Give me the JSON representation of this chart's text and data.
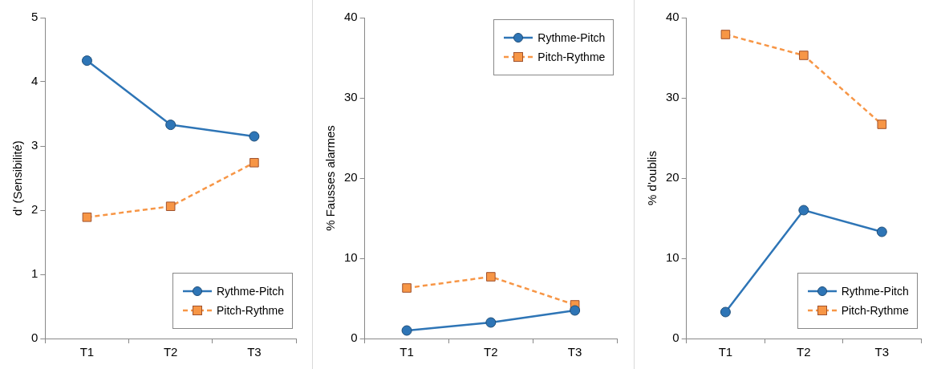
{
  "chart_data": [
    {
      "type": "line",
      "ylabel": "d' (Sensibilité)",
      "categories": [
        "T1",
        "T2",
        "T3"
      ],
      "ylim": [
        0,
        5
      ],
      "yticks": [
        0,
        1,
        2,
        3,
        4,
        5
      ],
      "grid": false,
      "legend": "bottom right",
      "series": [
        {
          "name": "Rythme-Pitch",
          "color": "#2e75b6",
          "values": [
            4.33,
            3.33,
            3.15
          ],
          "marker": "circle",
          "line_style": "solid"
        },
        {
          "name": "Pitch-Rythme",
          "color": "#f79646",
          "values": [
            1.89,
            2.06,
            2.74
          ],
          "marker": "square",
          "line_style": "dashed"
        }
      ]
    },
    {
      "type": "line",
      "ylabel": "% Fausses alarmes",
      "categories": [
        "T1",
        "T2",
        "T3"
      ],
      "ylim": [
        0,
        40
      ],
      "yticks": [
        0,
        10,
        20,
        30,
        40
      ],
      "grid": false,
      "legend": "top right",
      "series": [
        {
          "name": "Rythme-Pitch",
          "color": "#2e75b6",
          "values": [
            1.0,
            2.0,
            3.5
          ],
          "marker": "circle",
          "line_style": "solid"
        },
        {
          "name": "Pitch-Rythme",
          "color": "#f79646",
          "values": [
            6.3,
            7.7,
            4.2
          ],
          "marker": "square",
          "line_style": "dashed"
        }
      ]
    },
    {
      "type": "line",
      "ylabel": "% d'oublis",
      "categories": [
        "T1",
        "T2",
        "T3"
      ],
      "ylim": [
        0,
        40
      ],
      "yticks": [
        0,
        10,
        20,
        30,
        40
      ],
      "grid": false,
      "legend": "bottom right",
      "series": [
        {
          "name": "Rythme-Pitch",
          "color": "#2e75b6",
          "values": [
            3.3,
            16.0,
            13.3
          ],
          "marker": "circle",
          "line_style": "solid"
        },
        {
          "name": "Pitch-Rythme",
          "color": "#f79646",
          "values": [
            37.9,
            35.3,
            26.7
          ],
          "marker": "square",
          "line_style": "dashed"
        }
      ]
    }
  ]
}
